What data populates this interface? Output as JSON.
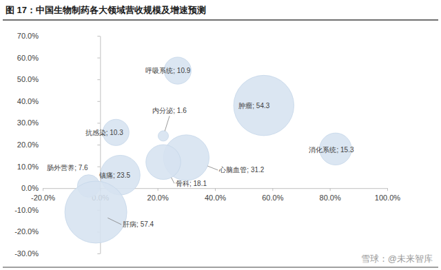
{
  "chart_data": {
    "type": "scatter",
    "title": "图 17：中国生物制药各大领域营收规模及增速预测",
    "x": [
      27,
      57,
      22,
      5.5,
      82,
      30,
      22,
      7,
      -4,
      -1.5
    ],
    "values": [
      54,
      38,
      24,
      25.6,
      18,
      14,
      12,
      6,
      1,
      -11
    ],
    "sizes": [
      10.9,
      54.3,
      1.6,
      10.3,
      15.3,
      31.2,
      18.1,
      23.5,
      7.6,
      57.4
    ],
    "labels": [
      "呼吸系统; 10.9",
      "肿瘤; 54.3",
      "内分泌; 1.6",
      "抗感染; 10.3",
      "消化系统; 15.3",
      "心脑血管; 31.2",
      "骨科; 18.1",
      "镇痛; 23.5",
      "肠外营养; 7.6",
      "肝病; 57.4"
    ],
    "color": "#d6e2f0",
    "marker": "circle",
    "data_labels": true,
    "grid": false,
    "xlim": [
      -20,
      100
    ],
    "xticks": [
      {
        "value": -20,
        "label": "-20.0%"
      },
      {
        "value": 0,
        "label": "0.0%"
      },
      {
        "value": 20,
        "label": "20.0%"
      },
      {
        "value": 40,
        "label": "40.0%"
      },
      {
        "value": 60,
        "label": "60.0%"
      },
      {
        "value": 80,
        "label": "80.0%"
      },
      {
        "value": 100,
        "label": "100.0%"
      }
    ],
    "ylim": [
      -30,
      70
    ],
    "yticks": [
      {
        "value": -30,
        "label": "-30.0%"
      },
      {
        "value": -20,
        "label": "-20.0%"
      },
      {
        "value": -10,
        "label": "-10.0%"
      },
      {
        "value": 0,
        "label": "0.0%"
      },
      {
        "value": 10,
        "label": "10.0%"
      },
      {
        "value": 20,
        "label": "20.0%"
      },
      {
        "value": 30,
        "label": "30.0%"
      },
      {
        "value": 40,
        "label": "40.0%"
      },
      {
        "value": 50,
        "label": "50.0%"
      },
      {
        "value": 60,
        "label": "60.0%"
      },
      {
        "value": 70,
        "label": "70.0%"
      }
    ],
    "annotations": [
      "雪球：@未来智库"
    ]
  }
}
